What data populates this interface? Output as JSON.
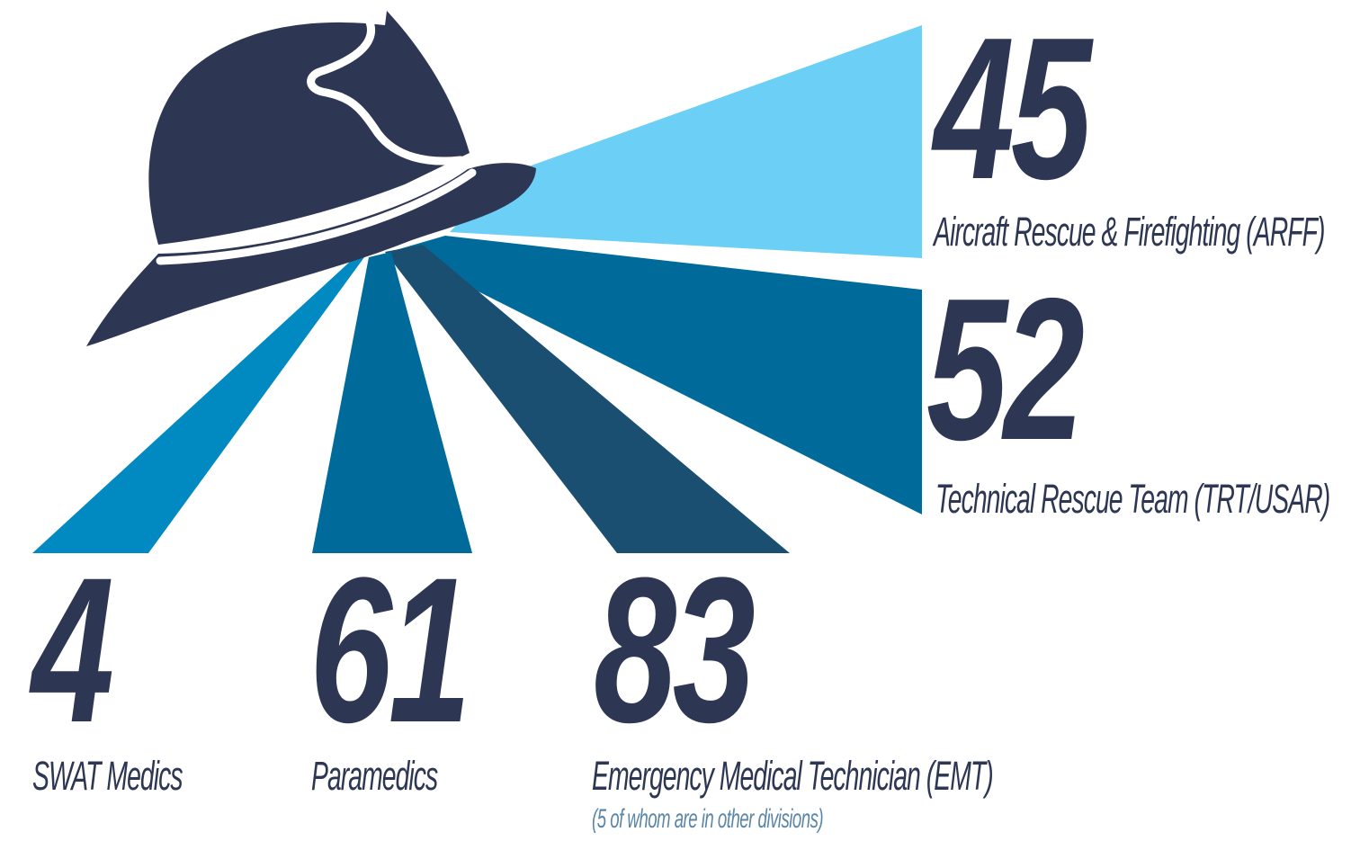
{
  "colors": {
    "dark_navy": "#2d3652",
    "light_blue": "#6bcff6",
    "medium_blue": "#006b9b",
    "cyan_blue": "#008ac1",
    "steel_blue": "#1a4f71",
    "note_blue": "#5a86a8"
  },
  "icon": "firefighter-helmet-icon",
  "stats": {
    "arff": {
      "value": "45",
      "label": "Aircraft Rescue & Firefighting (ARFF)"
    },
    "trt": {
      "value": "52",
      "label": "Technical Rescue Team (TRT/USAR)"
    },
    "swat": {
      "value": "4",
      "label": "SWAT Medics"
    },
    "paramedics": {
      "value": "61",
      "label": "Paramedics"
    },
    "emt": {
      "value": "83",
      "label": "Emergency Medical Technician (EMT)",
      "note": "(5 of whom are in other divisions)"
    }
  }
}
